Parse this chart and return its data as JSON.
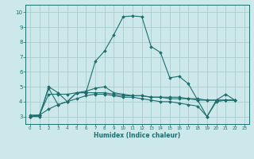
{
  "title": "",
  "xlabel": "Humidex (Indice chaleur)",
  "ylabel": "",
  "xlim": [
    -0.5,
    23.5
  ],
  "ylim": [
    2.5,
    10.5
  ],
  "xticks": [
    0,
    1,
    2,
    3,
    4,
    5,
    6,
    7,
    8,
    9,
    10,
    11,
    12,
    13,
    14,
    15,
    16,
    17,
    18,
    19,
    20,
    21,
    22,
    23
  ],
  "yticks": [
    3,
    4,
    5,
    6,
    7,
    8,
    9,
    10
  ],
  "background_color": "#cce8ea",
  "grid_color": "#aaccce",
  "line_color": "#1e6e6e",
  "series": [
    {
      "x": [
        0,
        1,
        2,
        3,
        4,
        5,
        6,
        7,
        8,
        9,
        10,
        11,
        12,
        13,
        14,
        15,
        16,
        17,
        18,
        19,
        20,
        21,
        22
      ],
      "y": [
        3.0,
        3.0,
        5.0,
        4.6,
        4.0,
        4.6,
        4.6,
        6.7,
        7.4,
        8.5,
        9.7,
        9.75,
        9.7,
        7.7,
        7.3,
        5.6,
        5.7,
        5.2,
        4.1,
        3.0,
        4.1,
        4.5,
        4.1
      ]
    },
    {
      "x": [
        0,
        1,
        2,
        3,
        4,
        5,
        6,
        7,
        8,
        9,
        10,
        11,
        12,
        13,
        14,
        15,
        16,
        17,
        18,
        19,
        20,
        21,
        22
      ],
      "y": [
        3.0,
        3.1,
        4.9,
        3.8,
        4.0,
        4.6,
        4.7,
        4.9,
        5.0,
        4.6,
        4.5,
        4.4,
        4.4,
        4.3,
        4.3,
        4.2,
        4.2,
        4.2,
        4.2,
        4.1,
        4.1,
        4.1,
        4.1
      ]
    },
    {
      "x": [
        0,
        1,
        2,
        3,
        4,
        5,
        6,
        7,
        8,
        9,
        10,
        11,
        12,
        13,
        14,
        15,
        16,
        17,
        18,
        19,
        20,
        21,
        22
      ],
      "y": [
        3.0,
        3.1,
        4.5,
        4.5,
        4.5,
        4.6,
        4.6,
        4.6,
        4.6,
        4.5,
        4.4,
        4.4,
        4.4,
        4.3,
        4.3,
        4.3,
        4.3,
        4.2,
        4.1,
        4.1,
        4.1,
        4.1,
        4.1
      ]
    },
    {
      "x": [
        0,
        1,
        2,
        3,
        4,
        5,
        6,
        7,
        8,
        9,
        10,
        11,
        12,
        13,
        14,
        15,
        16,
        17,
        18,
        19,
        20,
        21,
        22
      ],
      "y": [
        3.1,
        3.1,
        3.5,
        3.8,
        4.0,
        4.2,
        4.4,
        4.5,
        4.5,
        4.4,
        4.3,
        4.3,
        4.2,
        4.1,
        4.0,
        4.0,
        3.9,
        3.8,
        3.7,
        3.0,
        4.0,
        4.1,
        4.1
      ]
    }
  ]
}
